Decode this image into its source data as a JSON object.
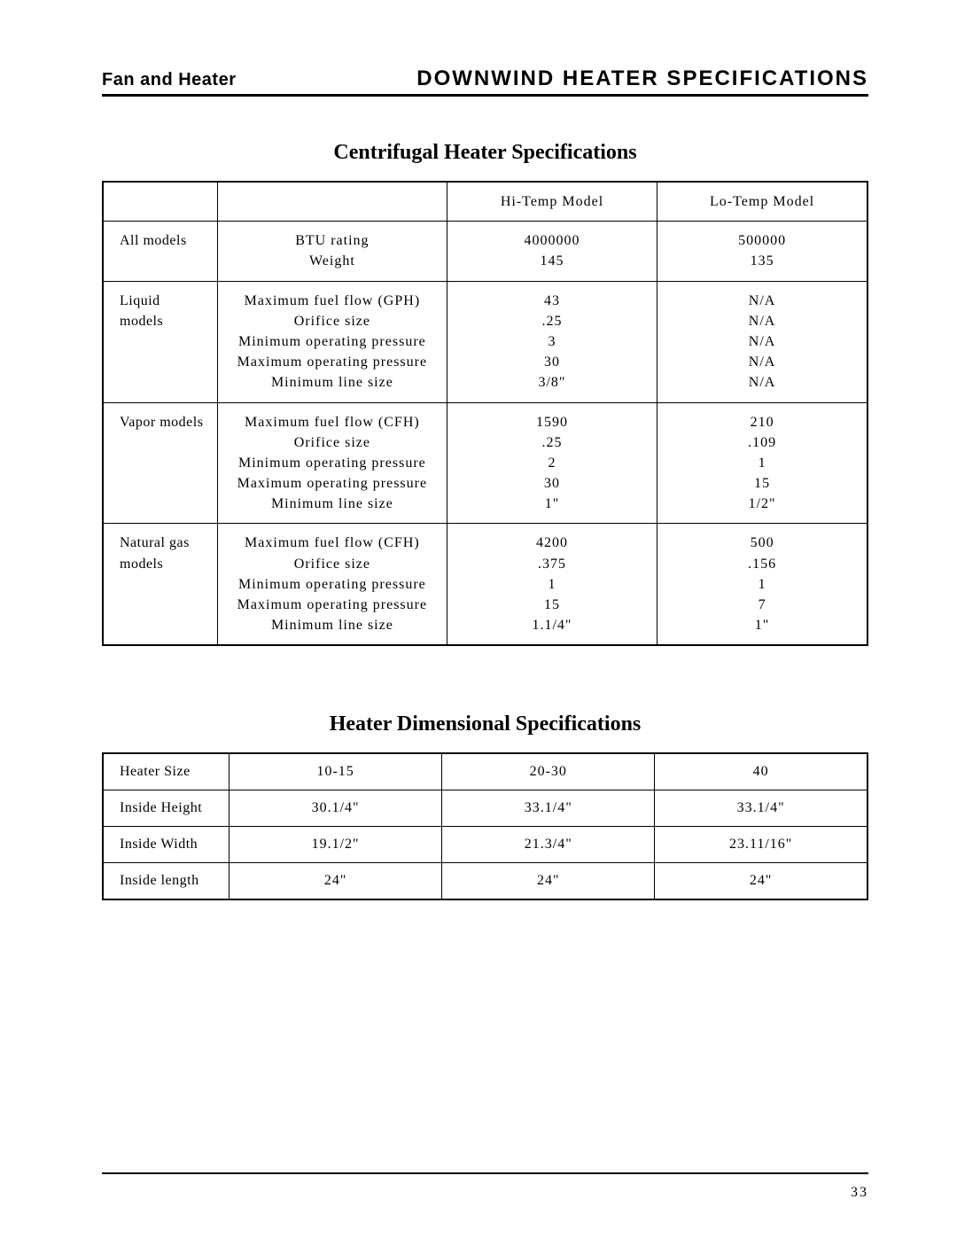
{
  "header": {
    "left": "Fan and Heater",
    "right": "DOWNWIND HEATER SPECIFICATIONS"
  },
  "pageNumber": "33",
  "centrifugal": {
    "title": "Centrifugal Heater Specifications",
    "columns": {
      "blank": "",
      "desc": "",
      "hi": "Hi-Temp Model",
      "lo": "Lo-Temp Model"
    },
    "groups": [
      {
        "name": [
          "All models"
        ],
        "desc": [
          "BTU rating",
          "Weight"
        ],
        "hi": [
          "4000000",
          "145"
        ],
        "lo": [
          "500000",
          "135"
        ]
      },
      {
        "name": [
          "Liquid models"
        ],
        "desc": [
          "Maximum fuel flow (GPH)",
          "Orifice size",
          "Minimum operating pressure",
          "Maximum operating pressure",
          "Minimum line size"
        ],
        "hi": [
          "43",
          ".25",
          "3",
          "30",
          "3/8\""
        ],
        "lo": [
          "N/A",
          "N/A",
          "N/A",
          "N/A",
          "N/A"
        ]
      },
      {
        "name": [
          "Vapor models"
        ],
        "desc": [
          "Maximum fuel flow (CFH)",
          "Orifice size",
          "Minimum operating pressure",
          "Maximum operating pressure",
          "Minimum line size"
        ],
        "hi": [
          "1590",
          ".25",
          "2",
          "30",
          "1\""
        ],
        "lo": [
          "210",
          ".109",
          "1",
          "15",
          "1/2\""
        ]
      },
      {
        "name": [
          "Natural gas",
          "models"
        ],
        "desc": [
          "Maximum fuel flow (CFH)",
          "Orifice size",
          "Minimum operating pressure",
          "Maximum operating pressure",
          "Minimum line size"
        ],
        "hi": [
          "4200",
          ".375",
          "1",
          "15",
          "1.1/4\""
        ],
        "lo": [
          "500",
          ".156",
          "1",
          "7",
          "1\""
        ]
      }
    ]
  },
  "dimensional": {
    "title": "Heater Dimensional Specifications",
    "rows": [
      [
        "Heater Size",
        "10-15",
        "20-30",
        "40"
      ],
      [
        "Inside Height",
        "30.1/4\"",
        "33.1/4\"",
        "33.1/4\""
      ],
      [
        "Inside Width",
        "19.1/2\"",
        "21.3/4\"",
        "23.11/16\""
      ],
      [
        "Inside length",
        "24\"",
        "24\"",
        "24\""
      ]
    ]
  }
}
